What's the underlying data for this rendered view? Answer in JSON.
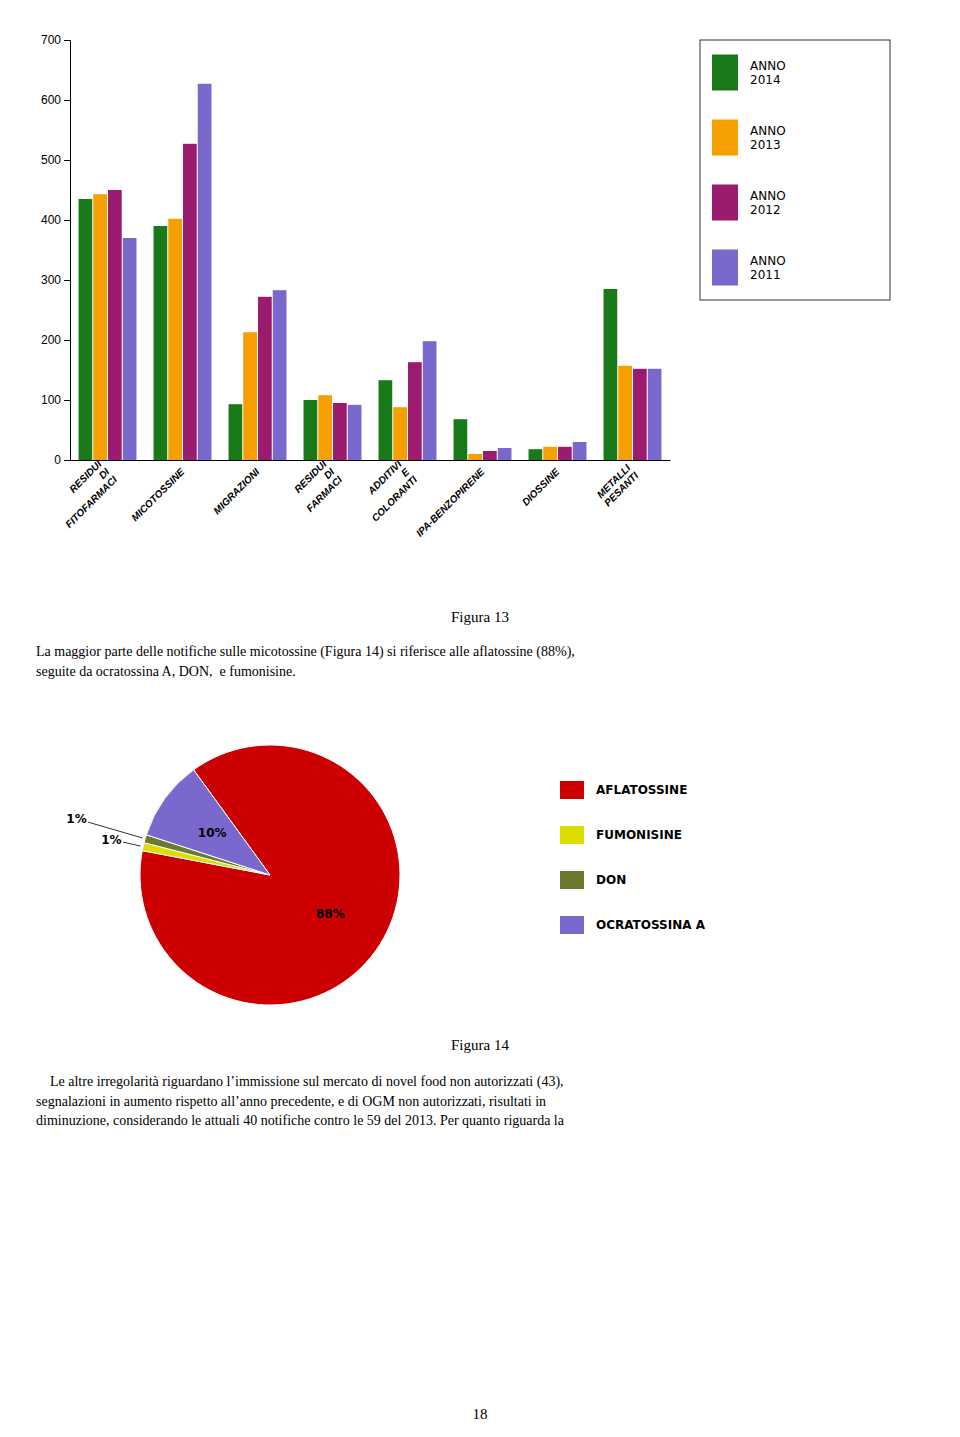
{
  "chart_data": [
    {
      "type": "bar",
      "categories": [
        "RESIDUI DI FITOFARMACI",
        "MICOTOSSINE",
        "MIGRAZIONI",
        "RESIDUI DI FARMACI",
        "ADDITIVI E COLORANTI",
        "IPA-BENZOPIRENE",
        "DIOSSINE",
        "METALLI PESANTI"
      ],
      "series": [
        {
          "name": "ANNO\n2014",
          "color": "#1a7a1a",
          "values": [
            435,
            390,
            93,
            100,
            133,
            68,
            18,
            285
          ]
        },
        {
          "name": "ANNO\n2013",
          "color": "#f5a000",
          "values": [
            443,
            402,
            213,
            108,
            88,
            10,
            22,
            157
          ]
        },
        {
          "name": "ANNO\n2012",
          "color": "#9b1b6e",
          "values": [
            450,
            527,
            272,
            95,
            163,
            15,
            22,
            152
          ]
        },
        {
          "name": "ANNO\n2011",
          "color": "#7b68cc",
          "values": [
            370,
            627,
            283,
            92,
            198,
            20,
            30,
            152
          ]
        }
      ],
      "ylim": [
        0,
        700
      ],
      "yticks": [
        0,
        100,
        200,
        300,
        400,
        500,
        600,
        700
      ],
      "grid": false,
      "legend": "right",
      "annotations": [
        "Figura 13"
      ]
    },
    {
      "type": "pie",
      "categories": [
        "AFLATOSSINE",
        "FUMONISINE",
        "DON",
        "OCRATOSSINA A"
      ],
      "values": [
        88,
        1,
        1,
        10
      ],
      "value_labels": [
        "88%",
        "1%",
        "1%",
        "10%"
      ],
      "colors": [
        "#cc0000",
        "#dddd00",
        "#6b7a2f",
        "#7b68cc"
      ],
      "data_labels": true,
      "legend": "right",
      "annotations": [
        "Figura 14"
      ]
    }
  ],
  "paragraphs": [
    "La maggior parte delle notifiche sulle micotossine (Figura 14) si riferisce alle aflatossine (88%),\nseguite da ocratossina A, DON,  e fumonisine.",
    "    Le altre irregolarità riguardano l’immissione sul mercato di novel food non autorizzati (43),\nsegnalazioni in aumento rispetto all’anno precedente, e di OGM non autorizzati, risultati in\ndiminuzione, considerando le attuali 40 notifiche contro le 59 del 2013. Per quanto riguarda la"
  ],
  "page_number": "18"
}
